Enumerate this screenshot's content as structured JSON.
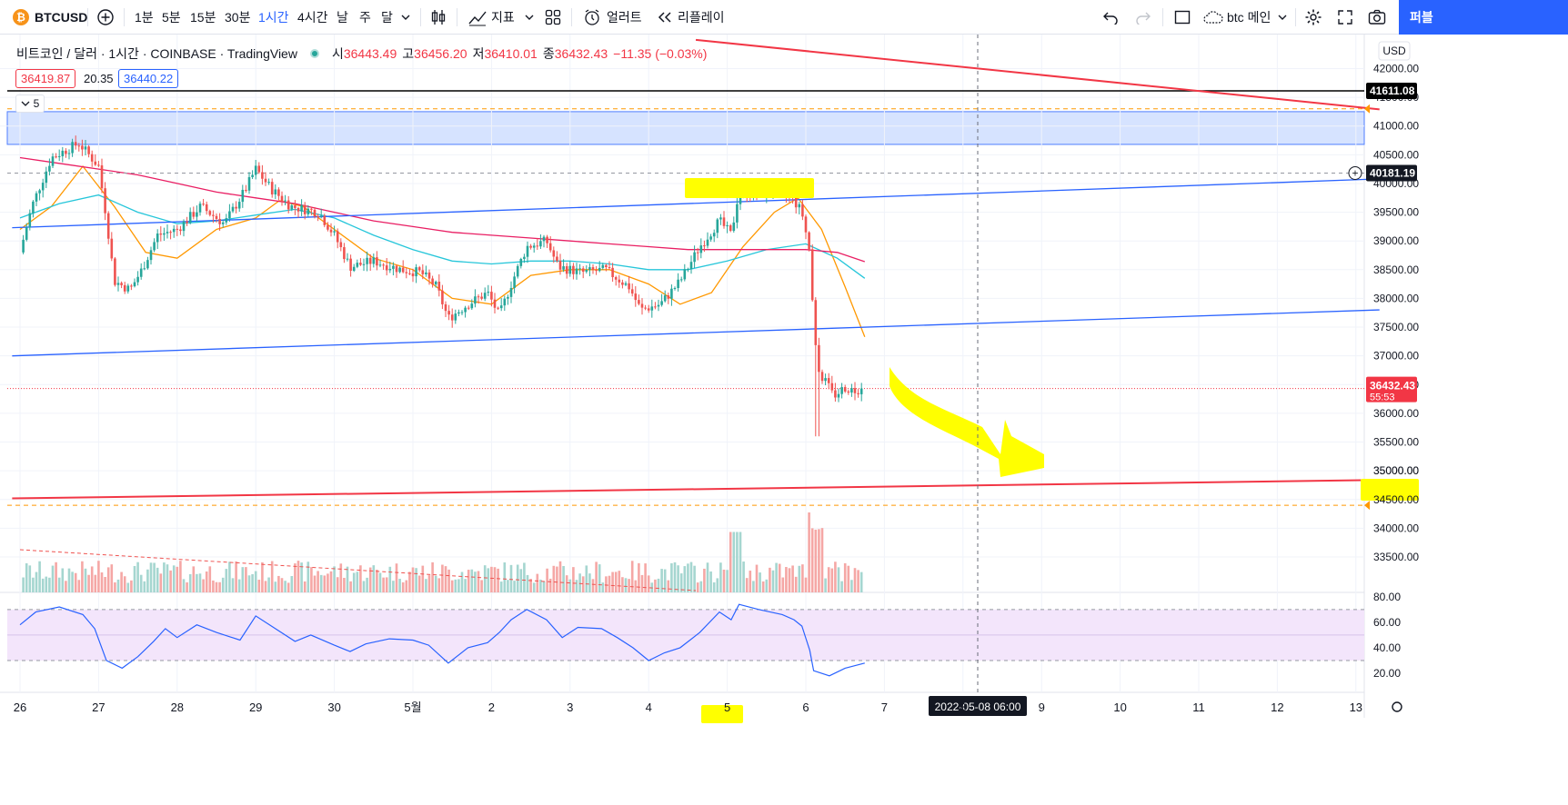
{
  "toolbar": {
    "symbol": "BTCUSD",
    "symbol_badge": "₿",
    "intervals": [
      "1분",
      "5분",
      "15분",
      "30분",
      "1시간",
      "4시간",
      "날",
      "주",
      "달"
    ],
    "active_interval": "1시간",
    "indicators_label": "지표",
    "alert_label": "얼러트",
    "replay_label": "리플레이",
    "layout_name": "btc 메인",
    "publish_label": "퍼블"
  },
  "legend": {
    "title": "비트코인 / 달러 · 1시간 · COINBASE · TradingView",
    "open_label": "시",
    "open": "36443.49",
    "high_label": "고",
    "high": "36456.20",
    "low_label": "저",
    "low": "36410.01",
    "close_label": "종",
    "close": "36432.43",
    "change": "−11.35 (−0.03%)",
    "bid": "36419.87",
    "spread": "20.35",
    "ask": "36440.22",
    "collapsed_count": "5"
  },
  "currency": "USD",
  "price_tags": {
    "black_line": "41611.08",
    "crosshair": "40181.19",
    "last_price": "36432.43",
    "countdown": "55:53",
    "highlighted": "35000.00"
  },
  "crosshair_time_label": "2022-05-08   06:00",
  "colors": {
    "up": "#26a69a",
    "down": "#ef5350",
    "trend_red": "#f23645",
    "trend_blue": "#2962ff",
    "ma_orange": "#ff9800",
    "ma_cyan": "#26c6da",
    "ma_pink": "#e91e63",
    "rsi": "#2962ff",
    "rsi_band": "#f3e5fb",
    "zone": "#d6e3ff",
    "highlight": "#ffff00"
  },
  "chart_data": {
    "type": "candlestick",
    "title": "비트코인 / 달러 · 1시간 · COINBASE · TradingView",
    "xlabel": "",
    "ylabel": "USD",
    "ylim": [
      33200,
      42450
    ],
    "y_ticks": [
      "42000.00",
      "41500.00",
      "41000.00",
      "40500.00",
      "40000.00",
      "39500.00",
      "39000.00",
      "38500.00",
      "38000.00",
      "37500.00",
      "37000.00",
      "36500.00",
      "36000.00",
      "35500.00",
      "35000.00",
      "34500.00",
      "34000.00",
      "33500.00"
    ],
    "x_ticks": [
      "26",
      "27",
      "28",
      "29",
      "30",
      "5월",
      "2",
      "3",
      "4",
      "5",
      "6",
      "7",
      "8",
      "9",
      "10",
      "11",
      "12",
      "13"
    ],
    "price_path": [
      [
        0,
        38800
      ],
      [
        0.15,
        39600
      ],
      [
        0.4,
        40450
      ],
      [
        0.75,
        40700
      ],
      [
        1.0,
        40300
      ],
      [
        1.1,
        39400
      ],
      [
        1.2,
        38300
      ],
      [
        1.4,
        38150
      ],
      [
        1.55,
        38500
      ],
      [
        1.75,
        39100
      ],
      [
        2.0,
        39200
      ],
      [
        2.3,
        39600
      ],
      [
        2.6,
        39300
      ],
      [
        2.85,
        39850
      ],
      [
        3.0,
        40250
      ],
      [
        3.2,
        39900
      ],
      [
        3.45,
        39600
      ],
      [
        3.8,
        39500
      ],
      [
        4.0,
        39100
      ],
      [
        4.2,
        38550
      ],
      [
        4.5,
        38650
      ],
      [
        4.85,
        38500
      ],
      [
        5.1,
        38450
      ],
      [
        5.3,
        38200
      ],
      [
        5.45,
        37650
      ],
      [
        5.7,
        37900
      ],
      [
        5.95,
        38100
      ],
      [
        6.1,
        37700
      ],
      [
        6.25,
        38250
      ],
      [
        6.45,
        38900
      ],
      [
        6.7,
        39000
      ],
      [
        6.85,
        38550
      ],
      [
        7.15,
        38450
      ],
      [
        7.45,
        38500
      ],
      [
        7.6,
        38350
      ],
      [
        7.75,
        38200
      ],
      [
        7.9,
        37800
      ],
      [
        8.15,
        37900
      ],
      [
        8.4,
        38300
      ],
      [
        8.65,
        38900
      ],
      [
        8.9,
        39350
      ],
      [
        9.05,
        39100
      ],
      [
        9.15,
        39900
      ],
      [
        9.35,
        39800
      ],
      [
        9.6,
        39900
      ],
      [
        9.85,
        39700
      ],
      [
        9.95,
        39500
      ],
      [
        10.05,
        38800
      ],
      [
        10.1,
        37500
      ],
      [
        10.15,
        36750
      ],
      [
        10.25,
        36550
      ],
      [
        10.35,
        36300
      ],
      [
        10.5,
        36450
      ],
      [
        10.6,
        36400
      ],
      [
        10.7,
        36432
      ]
    ],
    "moving_averages": [
      {
        "color": "#ff9800",
        "points": [
          [
            0,
            39200
          ],
          [
            0.4,
            39600
          ],
          [
            0.8,
            40300
          ],
          [
            1.2,
            39600
          ],
          [
            1.6,
            38800
          ],
          [
            2.0,
            38700
          ],
          [
            2.5,
            39200
          ],
          [
            3.0,
            39400
          ],
          [
            3.3,
            39700
          ],
          [
            3.6,
            39600
          ],
          [
            4.0,
            39200
          ],
          [
            4.5,
            38700
          ],
          [
            5.0,
            38500
          ],
          [
            5.5,
            38000
          ],
          [
            6.0,
            37900
          ],
          [
            6.5,
            38400
          ],
          [
            7.0,
            38500
          ],
          [
            7.5,
            38500
          ],
          [
            8.0,
            38250
          ],
          [
            8.4,
            37900
          ],
          [
            8.8,
            38100
          ],
          [
            9.2,
            38900
          ],
          [
            9.6,
            39500
          ],
          [
            9.9,
            39750
          ],
          [
            10.2,
            39200
          ],
          [
            10.5,
            38200
          ],
          [
            10.75,
            37330
          ]
        ]
      },
      {
        "color": "#26c6da",
        "points": [
          [
            0,
            39400
          ],
          [
            0.5,
            39650
          ],
          [
            1.0,
            39800
          ],
          [
            1.5,
            39500
          ],
          [
            2.0,
            39300
          ],
          [
            2.5,
            39350
          ],
          [
            3.0,
            39450
          ],
          [
            3.5,
            39550
          ],
          [
            4.0,
            39400
          ],
          [
            4.5,
            39100
          ],
          [
            5.0,
            38850
          ],
          [
            5.5,
            38650
          ],
          [
            6.0,
            38600
          ],
          [
            6.5,
            38650
          ],
          [
            7.0,
            38650
          ],
          [
            7.5,
            38600
          ],
          [
            8.0,
            38500
          ],
          [
            8.5,
            38500
          ],
          [
            9.0,
            38650
          ],
          [
            9.5,
            38850
          ],
          [
            10.0,
            38950
          ],
          [
            10.4,
            38700
          ],
          [
            10.75,
            38350
          ]
        ]
      },
      {
        "color": "#e91e63",
        "points": [
          [
            0,
            40450
          ],
          [
            0.5,
            40350
          ],
          [
            1.0,
            40250
          ],
          [
            1.5,
            40150
          ],
          [
            2.0,
            40000
          ],
          [
            2.5,
            39850
          ],
          [
            3.0,
            39750
          ],
          [
            3.5,
            39650
          ],
          [
            4.0,
            39500
          ],
          [
            4.5,
            39350
          ],
          [
            5.0,
            39250
          ],
          [
            5.5,
            39150
          ],
          [
            6.0,
            39100
          ],
          [
            6.5,
            39050
          ],
          [
            7.0,
            39000
          ],
          [
            7.5,
            38950
          ],
          [
            8.0,
            38900
          ],
          [
            8.5,
            38850
          ],
          [
            9.0,
            38850
          ],
          [
            9.5,
            38850
          ],
          [
            10.0,
            38850
          ],
          [
            10.4,
            38800
          ],
          [
            10.75,
            38640
          ]
        ]
      }
    ],
    "trend_lines": [
      {
        "color": "#f23645",
        "from": [
          8.6,
          42500
        ],
        "to": [
          17.3,
          41290
        ]
      },
      {
        "color": "#f23645",
        "from": [
          -0.1,
          34520
        ],
        "to": [
          17.3,
          34840
        ]
      },
      {
        "color": "#2962ff",
        "from": [
          -0.1,
          39230
        ],
        "to": [
          17.3,
          40080
        ]
      },
      {
        "color": "#2962ff",
        "from": [
          -0.1,
          37000
        ],
        "to": [
          17.3,
          37800
        ]
      }
    ],
    "horizontal_lines": [
      {
        "price": 41611.08,
        "color": "#000000",
        "style": "solid"
      },
      {
        "price": 41300,
        "color": "#ff9800",
        "style": "dashed"
      },
      {
        "price": 34400,
        "color": "#ff9800",
        "style": "dashed"
      },
      {
        "price": 36432.43,
        "color": "#f23645",
        "style": "dotted"
      }
    ],
    "zone": {
      "top": 41250,
      "bottom": 40680
    },
    "rsi": {
      "levels": [
        "80.00",
        "60.00",
        "40.00",
        "20.00"
      ],
      "ylim": [
        15,
        82
      ],
      "band": [
        30,
        70
      ],
      "points": [
        [
          0,
          58
        ],
        [
          0.2,
          68
        ],
        [
          0.5,
          72
        ],
        [
          0.8,
          66
        ],
        [
          0.95,
          55
        ],
        [
          1.1,
          30
        ],
        [
          1.3,
          24
        ],
        [
          1.5,
          33
        ],
        [
          1.7,
          45
        ],
        [
          1.85,
          55
        ],
        [
          2.0,
          48
        ],
        [
          2.25,
          58
        ],
        [
          2.5,
          52
        ],
        [
          2.8,
          46
        ],
        [
          3.0,
          65
        ],
        [
          3.2,
          57
        ],
        [
          3.5,
          45
        ],
        [
          3.7,
          50
        ],
        [
          4.0,
          42
        ],
        [
          4.2,
          37
        ],
        [
          4.4,
          43
        ],
        [
          4.7,
          47
        ],
        [
          5.0,
          46
        ],
        [
          5.2,
          42
        ],
        [
          5.45,
          28
        ],
        [
          5.7,
          40
        ],
        [
          5.95,
          44
        ],
        [
          6.1,
          52
        ],
        [
          6.25,
          62
        ],
        [
          6.45,
          70
        ],
        [
          6.7,
          62
        ],
        [
          6.9,
          48
        ],
        [
          7.1,
          56
        ],
        [
          7.4,
          55
        ],
        [
          7.6,
          48
        ],
        [
          7.8,
          40
        ],
        [
          8.0,
          30
        ],
        [
          8.2,
          36
        ],
        [
          8.4,
          40
        ],
        [
          8.65,
          52
        ],
        [
          8.9,
          68
        ],
        [
          9.05,
          62
        ],
        [
          9.15,
          74
        ],
        [
          9.4,
          70
        ],
        [
          9.7,
          66
        ],
        [
          9.85,
          62
        ],
        [
          9.95,
          57
        ],
        [
          10.05,
          38
        ],
        [
          10.1,
          22
        ],
        [
          10.3,
          18
        ],
        [
          10.5,
          24
        ],
        [
          10.75,
          28
        ]
      ]
    },
    "volume_note": "volume histogram under price; spikes near 5th and 6th"
  }
}
